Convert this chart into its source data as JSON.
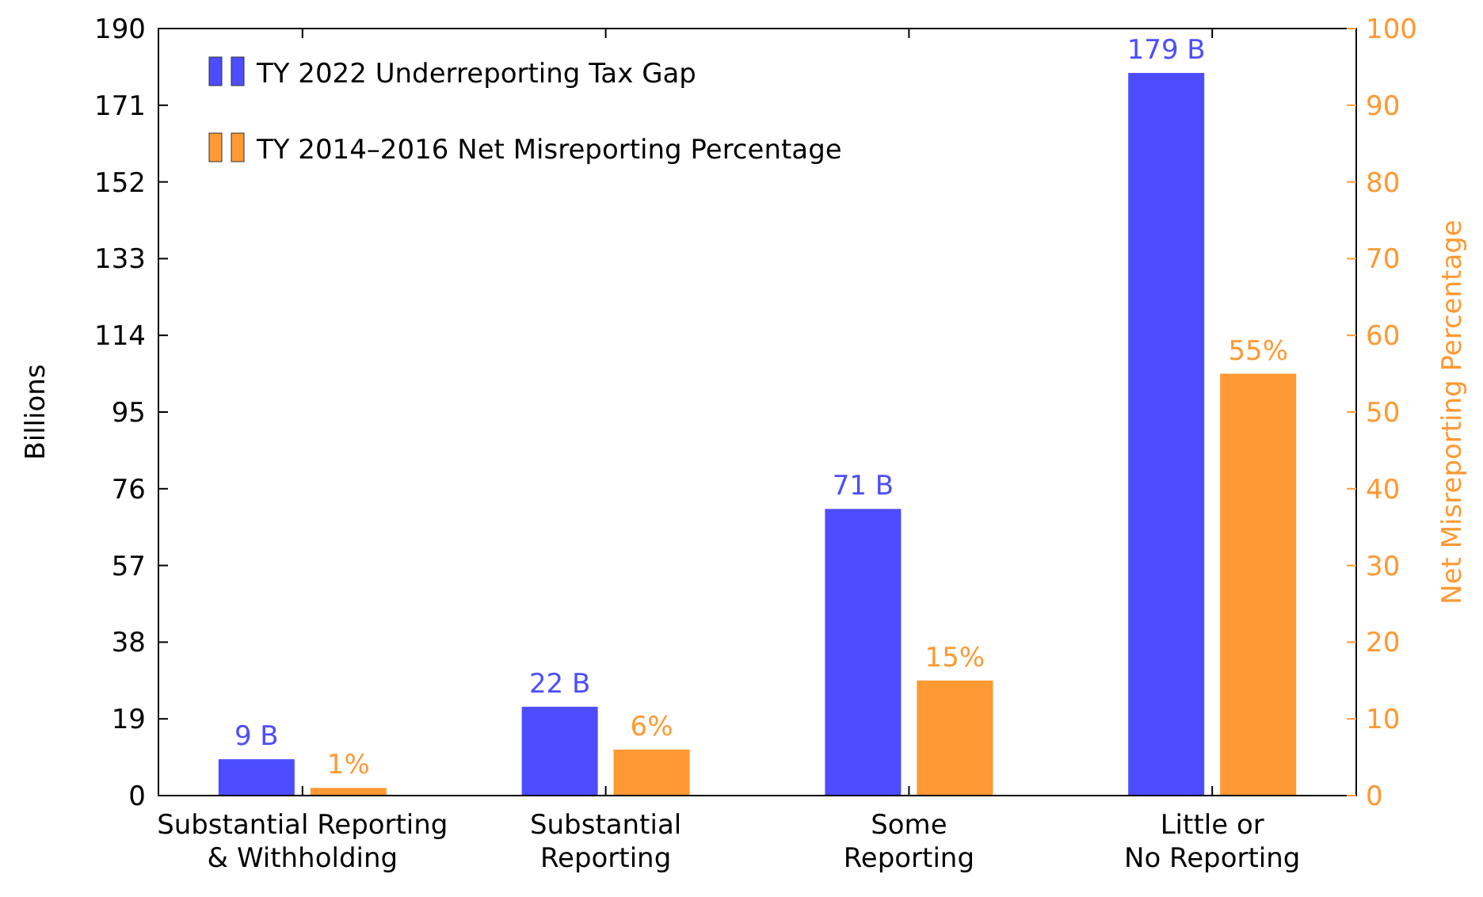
{
  "chart_data": {
    "type": "bar",
    "categories": [
      "Substantial Reporting\n& Withholding",
      "Substantial\nReporting",
      "Some\nReporting",
      "Little or\nNo Reporting"
    ],
    "ylabel": "Billions",
    "y2label": "Net Misreporting Percentage",
    "ylim": [
      0,
      190
    ],
    "yticks": [
      0,
      19,
      38,
      57,
      76,
      95,
      114,
      133,
      152,
      171,
      190
    ],
    "y2lim": [
      0,
      100
    ],
    "y2ticks": [
      0,
      10,
      20,
      30,
      40,
      50,
      60,
      70,
      80,
      90,
      100
    ],
    "legend": "top left",
    "series": [
      {
        "name": "TY 2022 Underreporting Tax Gap",
        "color": "#4d4dff",
        "values": [
          9,
          22,
          71,
          179
        ],
        "value_labels": [
          "9 B",
          "22 B",
          "71 B",
          "179 B"
        ]
      },
      {
        "name": "TY 2014–2016 Net Misreporting Percentage",
        "color": "#ff9933",
        "axis": "y2",
        "values": [
          1,
          6,
          15,
          55
        ],
        "value_labels": [
          "1%",
          "6%",
          "15%",
          "55%"
        ]
      }
    ]
  }
}
